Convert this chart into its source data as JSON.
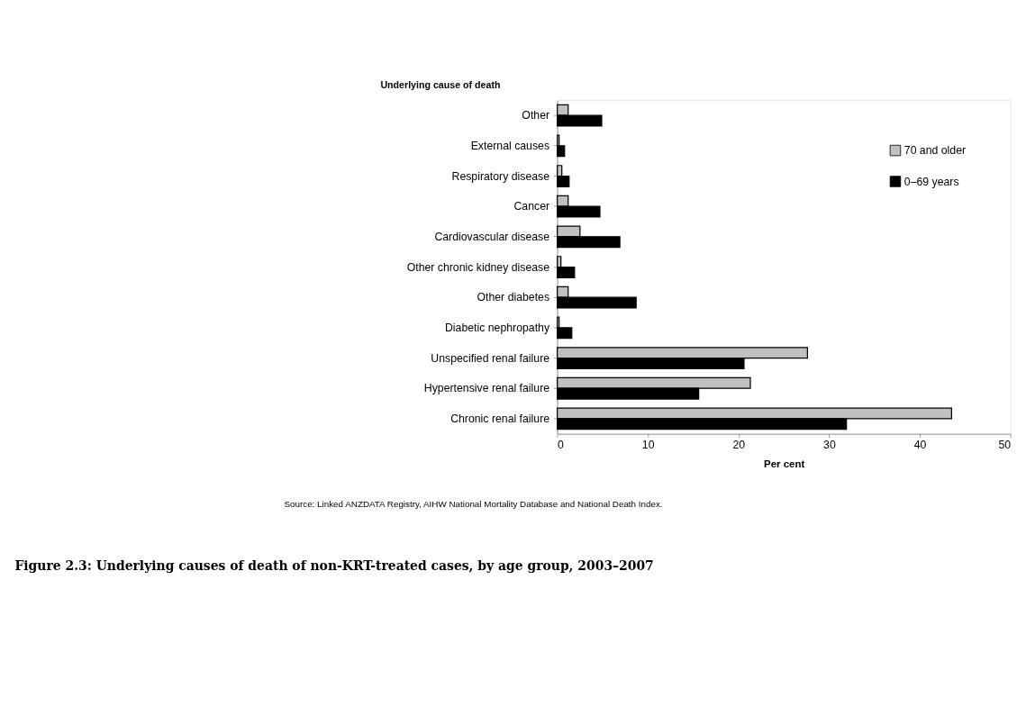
{
  "chart_data": {
    "type": "bar",
    "orientation": "horizontal",
    "title": "Figure 2.3: Underlying causes of death of non-KRT-treated cases, by age group, 2003–2007",
    "ylabel": "Underlying cause of death",
    "xlabel": "Per cent",
    "categories": [
      "Other",
      "External causes",
      "Respiratory disease",
      "Cancer",
      "Cardiovascular disease",
      "Other chronic kidney disease",
      "Other diabetes",
      "Diabetic nephropathy",
      "Unspecified renal failure",
      "Hypertensive renal failure",
      "Chronic renal failure"
    ],
    "series": [
      {
        "name": "70 and older",
        "color": "#c0c0c0",
        "values": [
          1.2,
          0.2,
          0.5,
          1.2,
          2.5,
          0.4,
          1.2,
          0.2,
          27.6,
          21.3,
          43.5
        ]
      },
      {
        "name": "0–69 years",
        "color": "#000000",
        "values": [
          4.9,
          0.8,
          1.3,
          4.7,
          6.9,
          1.9,
          8.7,
          1.6,
          20.6,
          15.6,
          31.9
        ]
      }
    ],
    "xlim": [
      0,
      50
    ],
    "xticks": [
      0,
      10,
      20,
      30,
      40,
      50
    ],
    "grid": false,
    "legend": "top right",
    "annotations": [
      "Source: Linked ANZDATA Registry, AIHW National Mortality Database and National Death Index."
    ]
  }
}
